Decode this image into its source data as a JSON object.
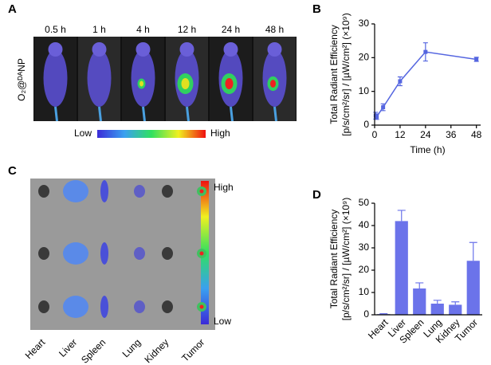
{
  "panel_letters": [
    "A",
    "B",
    "C",
    "D"
  ],
  "panel_a": {
    "times": [
      "0.5 h",
      "1 h",
      "4 h",
      "12 h",
      "24 h",
      "48 h"
    ],
    "row_label": "O₂@ᴰᴬNP",
    "scale_low": "Low",
    "scale_high": "High"
  },
  "panel_c": {
    "organs": [
      "Heart",
      "Liver",
      "Spleen",
      "Lung",
      "Kidney",
      "Tumor"
    ],
    "scale_high": "High",
    "scale_low": "Low"
  },
  "chart_data": [
    {
      "type": "line",
      "xlabel": "Time (h)",
      "ylabel": [
        "Total Radiant Efficiency",
        "[p/s/cm²/sr] / [µW/cm²] (×10⁹)"
      ],
      "x": [
        0.5,
        1,
        4,
        12,
        24,
        48
      ],
      "series": [
        {
          "color": "#5566e0",
          "values": [
            2.8,
            2.5,
            5.3,
            13,
            21.7,
            19.5
          ],
          "errors": [
            1,
            0.8,
            1,
            1.3,
            2.7,
            0.6
          ]
        }
      ],
      "xlim": [
        0,
        50
      ],
      "xticks": [
        0,
        12,
        24,
        36,
        48
      ],
      "ylim": [
        0,
        30
      ],
      "yticks": [
        0,
        10,
        20,
        30
      ]
    },
    {
      "type": "bar",
      "ylabel": [
        "Total Radiant Efficiency",
        "[p/s/cm²/sr] / [µW/cm²] (×10⁹)"
      ],
      "categories": [
        "Heart",
        "Liver",
        "Spleen",
        "Lung",
        "Kidney",
        "Tumor"
      ],
      "series": [
        {
          "color": "#6b73ea",
          "values": [
            0.3,
            42,
            11.8,
            5,
            4.5,
            24.2
          ],
          "errors": [
            0.2,
            4.8,
            2.5,
            1.5,
            1.3,
            8.2
          ]
        }
      ],
      "ylim": [
        0,
        50
      ],
      "yticks": [
        0,
        10,
        20,
        30,
        40,
        50
      ]
    }
  ]
}
